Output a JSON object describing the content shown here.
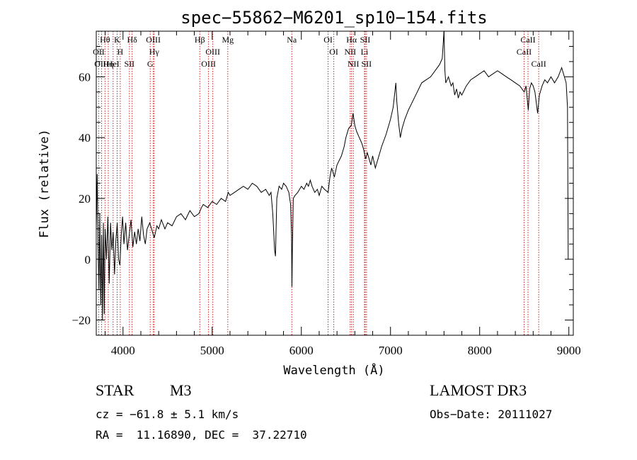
{
  "chart_data": {
    "type": "line",
    "title": "spec−55862−M6201_sp10−154.fits",
    "xlabel": "Wavelength (Å)",
    "ylabel": "Flux (relative)",
    "xlim": [
      3700,
      9050
    ],
    "ylim": [
      -25,
      75
    ],
    "xticks": [
      4000,
      5000,
      6000,
      7000,
      8000,
      9000
    ],
    "yticks": [
      -20,
      0,
      20,
      40,
      60
    ],
    "x_minor_step": 200,
    "y_minor_step": 5,
    "series": [
      {
        "name": "spectrum",
        "points": [
          [
            3700,
            10
          ],
          [
            3710,
            28
          ],
          [
            3720,
            5
          ],
          [
            3730,
            -10
          ],
          [
            3740,
            15
          ],
          [
            3750,
            -15
          ],
          [
            3760,
            8
          ],
          [
            3770,
            -20
          ],
          [
            3780,
            12
          ],
          [
            3790,
            -18
          ],
          [
            3800,
            10
          ],
          [
            3815,
            0
          ],
          [
            3830,
            14
          ],
          [
            3845,
            -8
          ],
          [
            3860,
            12
          ],
          [
            3875,
            3
          ],
          [
            3890,
            9
          ],
          [
            3905,
            -5
          ],
          [
            3920,
            6
          ],
          [
            3935,
            12
          ],
          [
            3950,
            0
          ],
          [
            3965,
            -2
          ],
          [
            3980,
            8
          ],
          [
            3995,
            14
          ],
          [
            4010,
            5
          ],
          [
            4030,
            12
          ],
          [
            4050,
            3
          ],
          [
            4070,
            8
          ],
          [
            4090,
            13
          ],
          [
            4110,
            4
          ],
          [
            4130,
            9
          ],
          [
            4150,
            5
          ],
          [
            4170,
            10
          ],
          [
            4190,
            6
          ],
          [
            4210,
            14
          ],
          [
            4230,
            8
          ],
          [
            4250,
            5
          ],
          [
            4270,
            10
          ],
          [
            4300,
            12
          ],
          [
            4330,
            9
          ],
          [
            4350,
            7
          ],
          [
            4380,
            11
          ],
          [
            4400,
            10
          ],
          [
            4430,
            13
          ],
          [
            4470,
            10
          ],
          [
            4500,
            12
          ],
          [
            4550,
            11
          ],
          [
            4600,
            14
          ],
          [
            4650,
            15
          ],
          [
            4700,
            13
          ],
          [
            4750,
            16
          ],
          [
            4800,
            14
          ],
          [
            4850,
            15
          ],
          [
            4880,
            17
          ],
          [
            4900,
            18
          ],
          [
            4950,
            17
          ],
          [
            5000,
            19
          ],
          [
            5050,
            18
          ],
          [
            5100,
            20
          ],
          [
            5150,
            19
          ],
          [
            5180,
            22
          ],
          [
            5200,
            21
          ],
          [
            5250,
            22
          ],
          [
            5300,
            23
          ],
          [
            5350,
            24
          ],
          [
            5400,
            23
          ],
          [
            5450,
            25
          ],
          [
            5500,
            24
          ],
          [
            5550,
            22
          ],
          [
            5600,
            23
          ],
          [
            5640,
            21
          ],
          [
            5660,
            22
          ],
          [
            5680,
            15
          ],
          [
            5700,
            3
          ],
          [
            5710,
            1
          ],
          [
            5725,
            20
          ],
          [
            5750,
            24
          ],
          [
            5780,
            23
          ],
          [
            5800,
            25
          ],
          [
            5830,
            24
          ],
          [
            5860,
            22
          ],
          [
            5880,
            18
          ],
          [
            5890,
            8
          ],
          [
            5895,
            -9
          ],
          [
            5900,
            5
          ],
          [
            5910,
            20
          ],
          [
            5930,
            21
          ],
          [
            5960,
            22
          ],
          [
            6000,
            24
          ],
          [
            6030,
            23
          ],
          [
            6060,
            25
          ],
          [
            6080,
            24
          ],
          [
            6100,
            26
          ],
          [
            6120,
            24
          ],
          [
            6150,
            22
          ],
          [
            6180,
            23
          ],
          [
            6200,
            21
          ],
          [
            6230,
            24
          ],
          [
            6260,
            23
          ],
          [
            6300,
            22
          ],
          [
            6320,
            27
          ],
          [
            6340,
            30
          ],
          [
            6370,
            27
          ],
          [
            6400,
            31
          ],
          [
            6450,
            34
          ],
          [
            6480,
            37
          ],
          [
            6500,
            40
          ],
          [
            6530,
            43
          ],
          [
            6560,
            44
          ],
          [
            6580,
            48
          ],
          [
            6600,
            44
          ],
          [
            6620,
            42
          ],
          [
            6650,
            40
          ],
          [
            6680,
            38
          ],
          [
            6700,
            36
          ],
          [
            6720,
            33
          ],
          [
            6740,
            35
          ],
          [
            6780,
            31
          ],
          [
            6800,
            34
          ],
          [
            6830,
            30
          ],
          [
            6860,
            33
          ],
          [
            6900,
            37
          ],
          [
            6950,
            41
          ],
          [
            7000,
            46
          ],
          [
            7030,
            50
          ],
          [
            7060,
            58
          ],
          [
            7070,
            52
          ],
          [
            7090,
            45
          ],
          [
            7110,
            40
          ],
          [
            7130,
            43
          ],
          [
            7160,
            46
          ],
          [
            7200,
            49
          ],
          [
            7250,
            52
          ],
          [
            7300,
            55
          ],
          [
            7350,
            58
          ],
          [
            7400,
            59
          ],
          [
            7450,
            60
          ],
          [
            7500,
            62
          ],
          [
            7550,
            64
          ],
          [
            7580,
            66
          ],
          [
            7600,
            75
          ],
          [
            7610,
            62
          ],
          [
            7620,
            58
          ],
          [
            7650,
            60
          ],
          [
            7680,
            57
          ],
          [
            7700,
            58
          ],
          [
            7720,
            54
          ],
          [
            7740,
            56
          ],
          [
            7760,
            53
          ],
          [
            7780,
            55
          ],
          [
            7800,
            54
          ],
          [
            7850,
            57
          ],
          [
            7900,
            59
          ],
          [
            7950,
            60
          ],
          [
            8000,
            61
          ],
          [
            8050,
            62
          ],
          [
            8100,
            60
          ],
          [
            8150,
            61
          ],
          [
            8200,
            62
          ],
          [
            8250,
            61
          ],
          [
            8300,
            60
          ],
          [
            8350,
            59
          ],
          [
            8400,
            58
          ],
          [
            8450,
            57
          ],
          [
            8500,
            55
          ],
          [
            8520,
            57
          ],
          [
            8545,
            49
          ],
          [
            8560,
            56
          ],
          [
            8580,
            58
          ],
          [
            8600,
            57
          ],
          [
            8620,
            55
          ],
          [
            8650,
            48
          ],
          [
            8670,
            54
          ],
          [
            8700,
            57
          ],
          [
            8730,
            59
          ],
          [
            8760,
            58
          ],
          [
            8800,
            60
          ],
          [
            8840,
            58
          ],
          [
            8880,
            60
          ],
          [
            8920,
            63
          ],
          [
            8950,
            60
          ],
          [
            8970,
            58
          ],
          [
            8985,
            50
          ],
          [
            8990,
            20
          ],
          [
            8993,
            0
          ]
        ]
      }
    ],
    "lines": [
      {
        "label": "Hθ",
        "wave": 3798
      },
      {
        "label": "OII",
        "wave": 3727
      },
      {
        "label": "OIII",
        "wave": 3760
      },
      {
        "label": "Hη",
        "wave": 3835
      },
      {
        "label": "HeI",
        "wave": 3889
      },
      {
        "label": "K",
        "wave": 3934
      },
      {
        "label": "H",
        "wave": 3969
      },
      {
        "label": "Hδ",
        "wave": 4102
      },
      {
        "label": "SII",
        "wave": 4072
      },
      {
        "label": "OIII",
        "wave": 4340
      },
      {
        "label": "Hγ",
        "wave": 4350
      },
      {
        "label": "G",
        "wave": 4305
      },
      {
        "label": "Hβ",
        "wave": 4861
      },
      {
        "label": "OIII",
        "wave": 5007
      },
      {
        "label": "OIII",
        "wave": 4959
      },
      {
        "label": "Mg",
        "wave": 5175
      },
      {
        "label": "Na",
        "wave": 5893
      },
      {
        "label": "OI",
        "wave": 6300
      },
      {
        "label": "OI",
        "wave": 6364
      },
      {
        "label": "Hα",
        "wave": 6563
      },
      {
        "label": "NII",
        "wave": 6548
      },
      {
        "label": "NII",
        "wave": 6583
      },
      {
        "label": "SII",
        "wave": 6716
      },
      {
        "label": "Li",
        "wave": 6708
      },
      {
        "label": "SII",
        "wave": 6731
      },
      {
        "label": "CaII",
        "wave": 8542
      },
      {
        "label": "CaII",
        "wave": 8498
      },
      {
        "label": "CaII",
        "wave": 8662
      }
    ],
    "line_color": "#cc2222",
    "trace_color": "#000000"
  },
  "info": {
    "class": "STAR",
    "subclass": "M3",
    "survey": "LAMOST DR3",
    "cz": "cz = −61.8 ± 5.1 km/s",
    "obs_date": "Obs−Date: 20111027",
    "radec": "RA =  11.16890, DEC =  37.22710"
  }
}
